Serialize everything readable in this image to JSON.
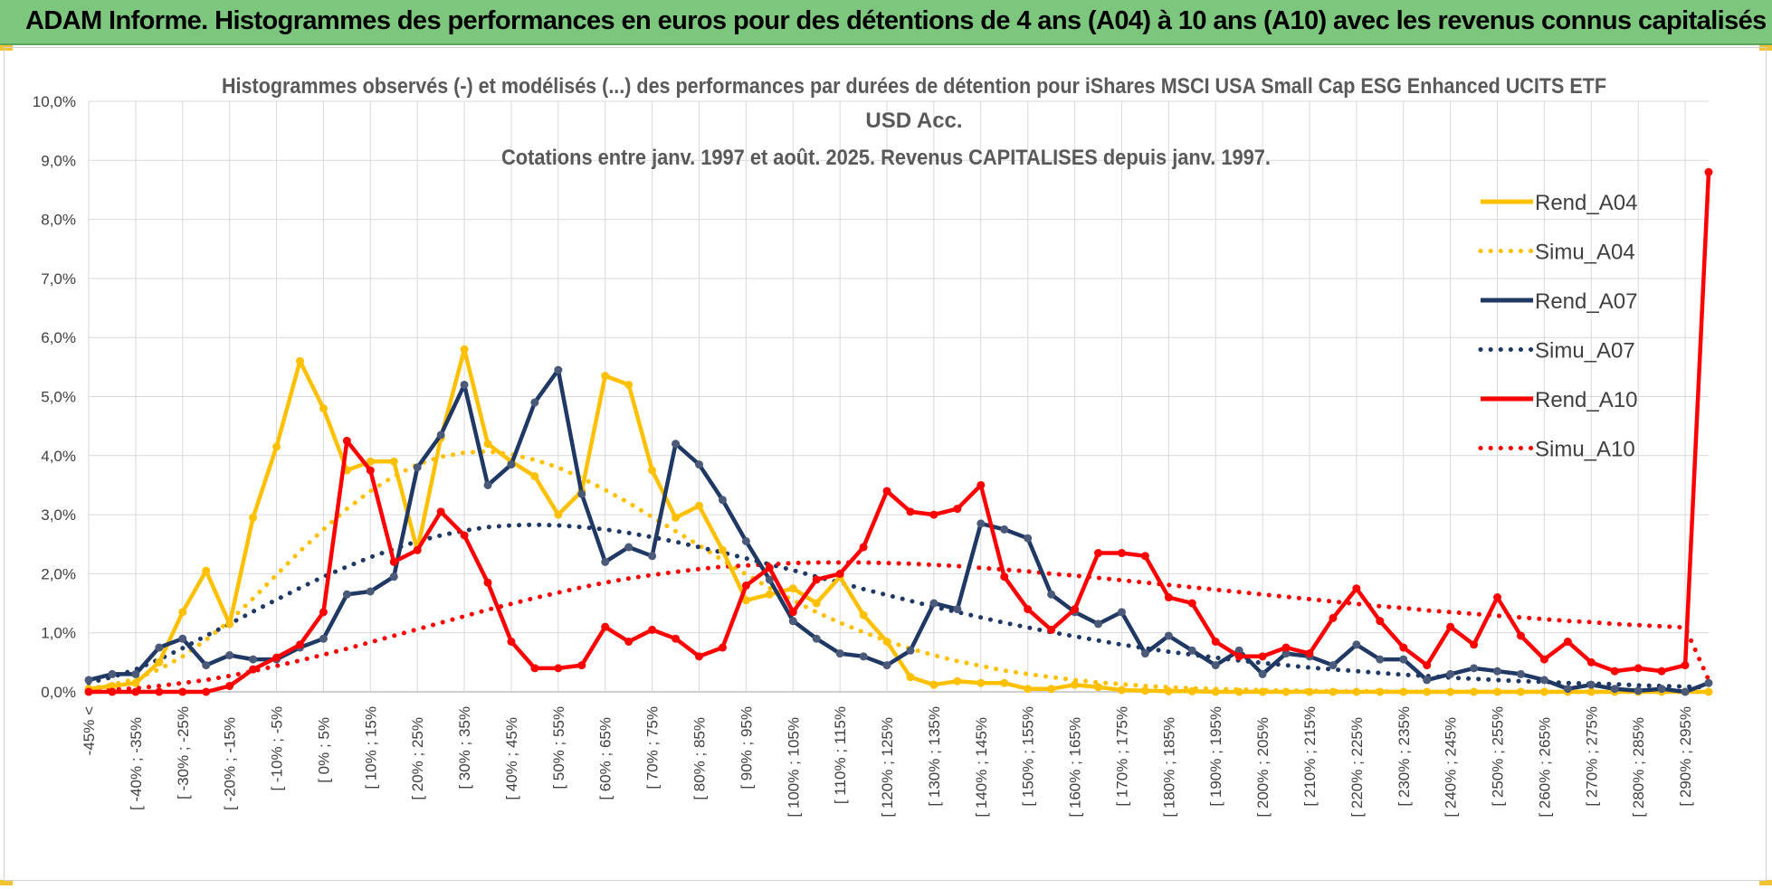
{
  "banner": {
    "title": "ADAM Informe. Histogrammes des performances en euros pour des détentions de 4 ans (A04) à 10 ans (A10) avec les revenus connus capitalisés"
  },
  "colors": {
    "banner_bg": "#7dc67e",
    "yellow": "#ffc000",
    "navy": "#1f3864",
    "red": "#ff0000",
    "grid": "#d9d9d9"
  },
  "chart_data": {
    "type": "line",
    "title_lines": [
      "Histogrammes observés (-) et modélisés (...) des performances par durées de détention pour iShares MSCI USA Small Cap ESG Enhanced UCITS ETF",
      "USD Acc.",
      "Cotations entre janv. 1997 et août. 2025. Revenus CAPITALISES depuis janv. 1997."
    ],
    "ylim": [
      0,
      10
    ],
    "y_ticks": [
      "0,0%",
      "1,0%",
      "2,0%",
      "3,0%",
      "4,0%",
      "5,0%",
      "6,0%",
      "7,0%",
      "8,0%",
      "9,0%",
      "10,0%"
    ],
    "grid": true,
    "legend_position": "right",
    "x_tick_labels": [
      "-45% <",
      "[ -40% ; -35%",
      "[ -30% ; -25%",
      "[ -20% ; -15%",
      "[ -10% ; -5%",
      "[ 0% ; 5%",
      "[ 10% ; 15%",
      "[ 20% ; 25%",
      "[ 30% ; 35%",
      "[ 40% ; 45%",
      "[ 50% ; 55%",
      "[ 60% ; 65%",
      "[ 70% ; 75%",
      "[ 80% ; 85%",
      "[ 90% ; 95%",
      "[ 100% ; 105%",
      "[ 110% ; 115%",
      "[ 120% ; 125%",
      "[ 130% ; 135%",
      "[ 140% ; 145%",
      "[ 150% ; 155%",
      "[ 160% ; 165%",
      "[ 170% ; 175%",
      "[ 180% ; 185%",
      "[ 190% ; 195%",
      "[ 200% ; 205%",
      "[ 210% ; 215%",
      "[ 220% ; 225%",
      "[ 230% ; 235%",
      "[ 240% ; 245%",
      "[ 250% ; 255%",
      "[ 260% ; 265%",
      "[ 270% ; 275%",
      "[ 280% ; 285%",
      "[ 290% ; 295%"
    ],
    "series": [
      {
        "name": "Rend_A04",
        "style": "solid",
        "color": "#ffc000",
        "values": [
          0.05,
          0.1,
          0.15,
          0.5,
          1.35,
          2.05,
          1.15,
          2.95,
          4.15,
          5.6,
          4.8,
          3.75,
          3.9,
          3.9,
          2.4,
          4.3,
          5.8,
          4.2,
          3.9,
          3.65,
          3.0,
          3.4,
          5.35,
          5.2,
          3.75,
          2.95,
          3.15,
          2.4,
          1.55,
          1.65,
          1.75,
          1.5,
          1.95,
          1.3,
          0.85,
          0.25,
          0.12,
          0.18,
          0.15,
          0.15,
          0.05,
          0.05,
          0.12,
          0.08,
          0.03,
          0.02,
          0.01,
          0.01,
          0.0,
          0.0,
          0.0,
          0.0,
          0.0,
          0.0,
          0.0,
          0.0,
          0.0,
          0.0,
          0.0,
          0.0,
          0.0,
          0.0,
          0.0,
          0.0,
          0.0,
          0.0,
          0.0,
          0.0,
          0.0,
          0.0
        ]
      },
      {
        "name": "Simu_A04",
        "style": "dotted",
        "color": "#ffc000",
        "values": [
          0.05,
          0.12,
          0.22,
          0.38,
          0.6,
          0.88,
          1.2,
          1.58,
          1.98,
          2.38,
          2.75,
          3.1,
          3.4,
          3.65,
          3.85,
          3.98,
          4.05,
          4.07,
          4.02,
          3.93,
          3.8,
          3.62,
          3.42,
          3.2,
          2.96,
          2.72,
          2.48,
          2.23,
          1.99,
          1.76,
          1.55,
          1.35,
          1.17,
          1.01,
          0.86,
          0.73,
          0.62,
          0.52,
          0.44,
          0.36,
          0.3,
          0.25,
          0.2,
          0.16,
          0.13,
          0.1,
          0.08,
          0.06,
          0.05,
          0.04,
          0.03,
          0.02,
          0.02,
          0.01,
          0.01,
          0.01,
          0.0,
          0.0,
          0.0,
          0.0,
          0.0,
          0.0,
          0.0,
          0.0,
          0.0,
          0.0,
          0.0,
          0.0,
          0.0,
          0.0
        ]
      },
      {
        "name": "Rend_A07",
        "style": "solid",
        "color": "#1f3864",
        "values": [
          0.2,
          0.3,
          0.3,
          0.75,
          0.9,
          0.45,
          0.62,
          0.55,
          0.55,
          0.75,
          0.9,
          1.65,
          1.7,
          1.95,
          3.8,
          4.35,
          5.2,
          3.5,
          3.85,
          4.9,
          5.45,
          3.35,
          2.2,
          2.45,
          2.3,
          4.2,
          3.85,
          3.25,
          2.55,
          1.9,
          1.2,
          0.9,
          0.65,
          0.6,
          0.45,
          0.7,
          1.5,
          1.4,
          2.85,
          2.75,
          2.6,
          1.65,
          1.35,
          1.15,
          1.35,
          0.65,
          0.95,
          0.7,
          0.45,
          0.7,
          0.3,
          0.65,
          0.6,
          0.45,
          0.8,
          0.55,
          0.55,
          0.2,
          0.3,
          0.4,
          0.35,
          0.3,
          0.2,
          0.05,
          0.12,
          0.05,
          0.02,
          0.05,
          0.0,
          0.15
        ]
      },
      {
        "name": "Simu_A07",
        "style": "dotted",
        "color": "#1f3864",
        "values": [
          0.15,
          0.25,
          0.38,
          0.55,
          0.74,
          0.95,
          1.15,
          1.36,
          1.56,
          1.76,
          1.95,
          2.12,
          2.28,
          2.42,
          2.55,
          2.65,
          2.73,
          2.79,
          2.82,
          2.83,
          2.82,
          2.79,
          2.75,
          2.69,
          2.62,
          2.54,
          2.45,
          2.36,
          2.26,
          2.16,
          2.06,
          1.95,
          1.85,
          1.74,
          1.64,
          1.54,
          1.44,
          1.35,
          1.26,
          1.17,
          1.09,
          1.01,
          0.94,
          0.87,
          0.8,
          0.74,
          0.68,
          0.63,
          0.58,
          0.53,
          0.49,
          0.45,
          0.41,
          0.38,
          0.35,
          0.32,
          0.29,
          0.27,
          0.24,
          0.22,
          0.2,
          0.18,
          0.17,
          0.15,
          0.14,
          0.13,
          0.11,
          0.1,
          0.09,
          0.08
        ]
      },
      {
        "name": "Rend_A10",
        "style": "solid",
        "color": "#ff0000",
        "values": [
          0.0,
          0.0,
          0.0,
          0.0,
          0.0,
          0.0,
          0.1,
          0.38,
          0.58,
          0.8,
          1.35,
          4.25,
          3.75,
          2.2,
          2.4,
          3.05,
          2.65,
          1.85,
          0.85,
          0.4,
          0.4,
          0.45,
          1.1,
          0.85,
          1.05,
          0.9,
          0.6,
          0.75,
          1.8,
          2.1,
          1.35,
          1.9,
          2.0,
          2.45,
          3.4,
          3.05,
          3.0,
          3.1,
          3.5,
          1.95,
          1.4,
          1.05,
          1.4,
          2.35,
          2.35,
          2.3,
          1.6,
          1.5,
          0.85,
          0.6,
          0.6,
          0.75,
          0.65,
          1.25,
          1.75,
          1.2,
          0.75,
          0.45,
          1.1,
          0.8,
          1.6,
          0.95,
          0.55,
          0.85,
          0.5,
          0.35,
          0.4,
          0.35,
          0.45,
          8.8
        ]
      },
      {
        "name": "Simu_A10",
        "style": "dotted",
        "color": "#ff0000",
        "values": [
          0.02,
          0.04,
          0.06,
          0.1,
          0.15,
          0.2,
          0.27,
          0.35,
          0.44,
          0.53,
          0.63,
          0.73,
          0.84,
          0.95,
          1.06,
          1.17,
          1.28,
          1.39,
          1.49,
          1.59,
          1.68,
          1.77,
          1.85,
          1.92,
          1.98,
          2.03,
          2.08,
          2.12,
          2.14,
          2.16,
          2.18,
          2.19,
          2.19,
          2.19,
          2.18,
          2.17,
          2.15,
          2.13,
          2.1,
          2.07,
          2.04,
          2.0,
          1.97,
          1.93,
          1.89,
          1.85,
          1.81,
          1.77,
          1.73,
          1.69,
          1.65,
          1.61,
          1.57,
          1.53,
          1.49,
          1.45,
          1.42,
          1.38,
          1.35,
          1.32,
          1.29,
          1.26,
          1.23,
          1.2,
          1.18,
          1.15,
          1.13,
          1.11,
          1.09,
          0.2
        ]
      }
    ]
  }
}
